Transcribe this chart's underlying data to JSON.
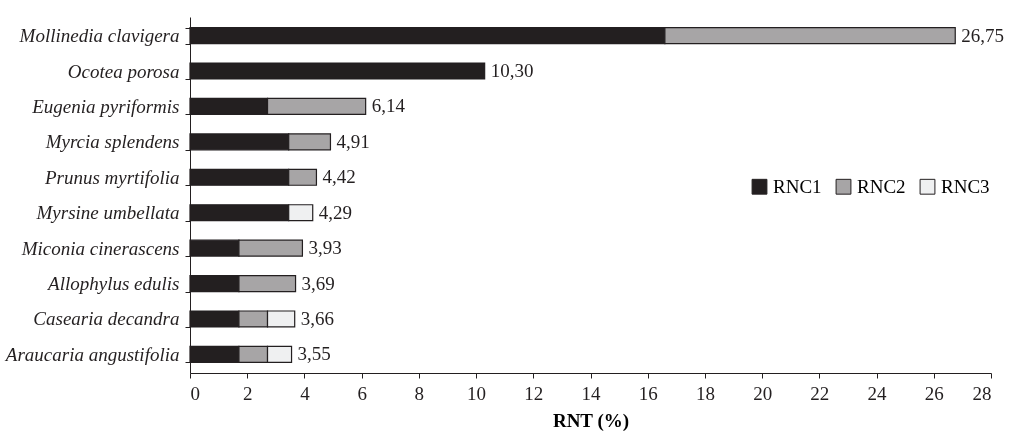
{
  "chart_data": {
    "type": "bar",
    "orientation": "horizontal",
    "stacked": true,
    "categories": [
      "Mollinedia clavigera",
      "Ocotea porosa",
      "Eugenia pyriformis",
      "Myrcia splendens",
      "Prunus myrtifolia",
      "Myrsine umbellata",
      "Miconia cinerascens",
      "Allophylus edulis",
      "Casearia decandra",
      "Araucaria angustifolia"
    ],
    "series": [
      {
        "name": "RNC1",
        "color": "#231f20",
        "values": [
          16.6,
          10.3,
          2.71,
          3.45,
          3.45,
          3.45,
          1.71,
          1.71,
          1.71,
          1.71
        ]
      },
      {
        "name": "RNC2",
        "color": "#a7a5a6",
        "values": [
          10.15,
          null,
          3.43,
          1.46,
          0.97,
          null,
          2.22,
          1.98,
          1.0,
          1.0
        ]
      },
      {
        "name": "RNC3",
        "color": "#eff0f1",
        "values": [
          null,
          null,
          null,
          null,
          null,
          0.84,
          null,
          null,
          0.95,
          0.84
        ]
      }
    ],
    "totals": [
      "26,75",
      "10,30",
      "6,14",
      "4,91",
      "4,42",
      "4,29",
      "3,93",
      "3,69",
      "3,66",
      "3,55"
    ],
    "xlabel": "RNT (%)",
    "xlim": [
      0,
      28
    ],
    "xticks": [
      0,
      2,
      4,
      6,
      8,
      10,
      12,
      14,
      16,
      18,
      20,
      22,
      24,
      26,
      28
    ],
    "grid": false,
    "legend": "right"
  }
}
